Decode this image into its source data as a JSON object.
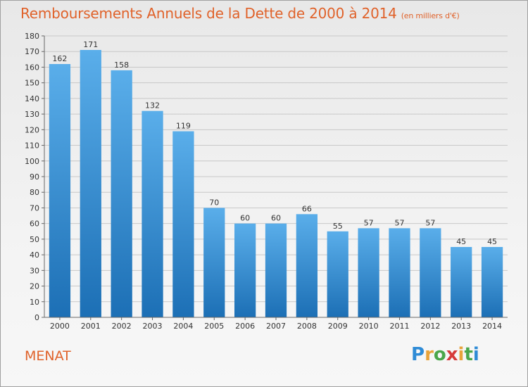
{
  "title": "Remboursements Annuels de la Dette de 2000 à 2014",
  "unit_note": "(en milliers d'€)",
  "commune": "MENAT",
  "logo": {
    "letters": [
      "P",
      "r",
      "o",
      "x",
      "i",
      "t",
      "i"
    ],
    "colors": [
      "#2e8bd6",
      "#e8a33a",
      "#4aa64a",
      "#d63a3a",
      "#e8a33a",
      "#4aa64a",
      "#2e8bd6"
    ]
  },
  "colors": {
    "title": "#e0622a",
    "bar_top": "#5aaeea",
    "bar_bottom": "#1c6fb5",
    "gridline": "#c8c8c8",
    "axis": "#666666"
  },
  "chart_data": {
    "type": "bar",
    "title": "Remboursements Annuels de la Dette de 2000 à 2014",
    "xlabel": "",
    "ylabel": "",
    "categories": [
      "2000",
      "2001",
      "2002",
      "2003",
      "2004",
      "2005",
      "2006",
      "2007",
      "2008",
      "2009",
      "2010",
      "2011",
      "2012",
      "2013",
      "2014"
    ],
    "values": [
      162,
      171,
      158,
      132,
      119,
      70,
      60,
      60,
      66,
      55,
      57,
      57,
      57,
      45,
      45
    ],
    "ylim": [
      0,
      180
    ],
    "yticks": [
      0,
      10,
      20,
      30,
      40,
      50,
      60,
      70,
      80,
      90,
      100,
      110,
      120,
      130,
      140,
      150,
      160,
      170,
      180
    ],
    "grid": true,
    "data_labels": true
  }
}
